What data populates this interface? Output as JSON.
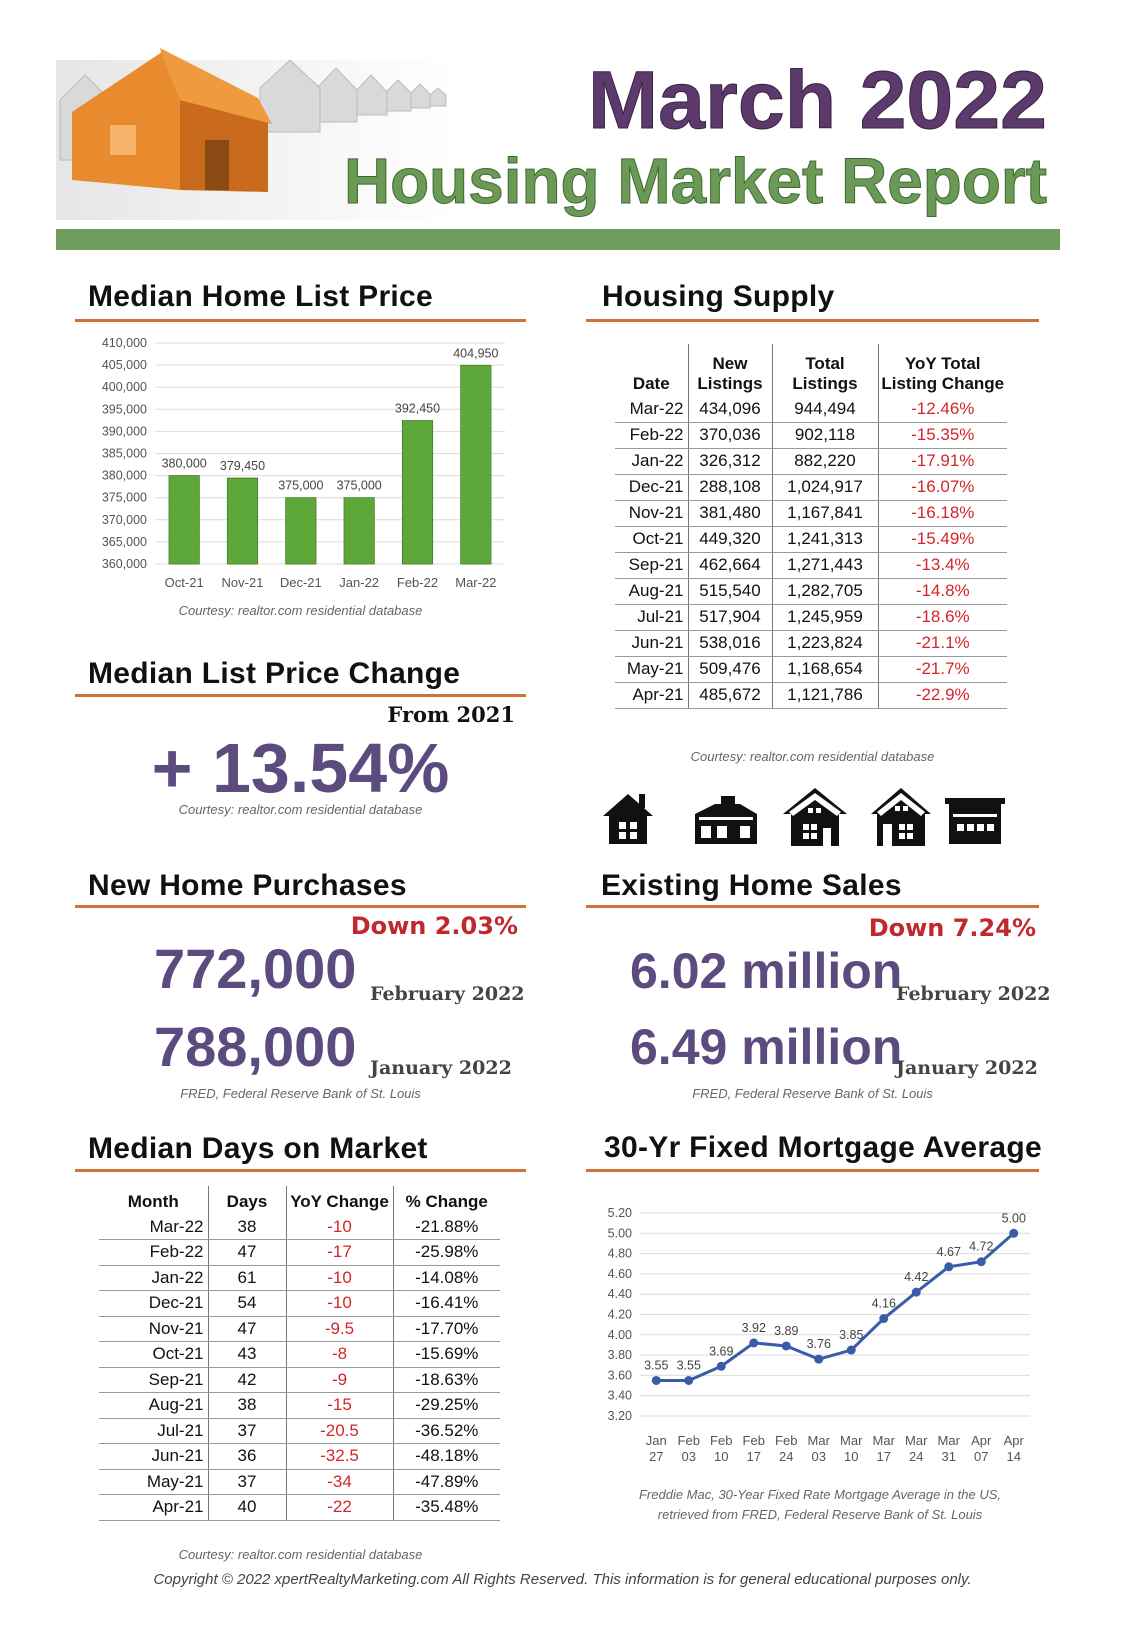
{
  "header": {
    "title": "March 2022",
    "subtitle": "Housing Market Report"
  },
  "chart_data": [
    {
      "type": "bar",
      "title": "Median Home List Price",
      "categories": [
        "Oct-21",
        "Nov-21",
        "Dec-21",
        "Jan-22",
        "Feb-22",
        "Mar-22"
      ],
      "values": [
        380000,
        379450,
        375000,
        375000,
        392450,
        404950
      ],
      "value_labels": [
        "380,000",
        "379,450",
        "375,000",
        "375,000",
        "392,450",
        "404,950"
      ],
      "color": "#5ea83a",
      "ylim": [
        360000,
        410000
      ],
      "yticks": [
        {
          "value": 360000,
          "label": "360,000"
        },
        {
          "value": 365000,
          "label": "365,000"
        },
        {
          "value": 370000,
          "label": "370,000"
        },
        {
          "value": 375000,
          "label": "375,000"
        },
        {
          "value": 380000,
          "label": "380,000"
        },
        {
          "value": 385000,
          "label": "385,000"
        },
        {
          "value": 390000,
          "label": "390,000"
        },
        {
          "value": 395000,
          "label": "395,000"
        },
        {
          "value": 400000,
          "label": "400,000"
        },
        {
          "value": 405000,
          "label": "405,000"
        },
        {
          "value": 410000,
          "label": "410,000"
        }
      ],
      "grid": true,
      "source": "Courtesy: realtor.com residential database"
    },
    {
      "type": "line",
      "title": "30-Yr Fixed Mortgage Average",
      "categories": [
        "Jan 27",
        "Feb 03",
        "Feb 10",
        "Feb 17",
        "Feb 24",
        "Mar 03",
        "Mar 10",
        "Mar 17",
        "Mar 24",
        "Mar 31",
        "Apr 07",
        "Apr 14"
      ],
      "values": [
        3.55,
        3.55,
        3.69,
        3.92,
        3.89,
        3.76,
        3.85,
        4.16,
        4.42,
        4.67,
        4.72,
        5.0
      ],
      "value_labels": [
        "3.55",
        "3.55",
        "3.69",
        "3.92",
        "3.89",
        "3.76",
        "3.85",
        "4.16",
        "4.42",
        "4.67",
        "4.72",
        "5.00"
      ],
      "color": "#3a5ca8",
      "ylim": [
        3.2,
        5.2
      ],
      "yticks": [
        {
          "value": 3.2,
          "label": "3.20"
        },
        {
          "value": 3.4,
          "label": "3.40"
        },
        {
          "value": 3.6,
          "label": "3.60"
        },
        {
          "value": 3.8,
          "label": "3.80"
        },
        {
          "value": 4.0,
          "label": "4.00"
        },
        {
          "value": 4.2,
          "label": "4.20"
        },
        {
          "value": 4.4,
          "label": "4.40"
        },
        {
          "value": 4.6,
          "label": "4.60"
        },
        {
          "value": 4.8,
          "label": "4.80"
        },
        {
          "value": 5.0,
          "label": "5.00"
        },
        {
          "value": 5.2,
          "label": "5.20"
        }
      ],
      "grid": true,
      "source": "Freddie Mac, 30-Year Fixed Rate Mortgage Average in the US, retrieved from FRED, Federal Reserve Bank of St. Louis"
    }
  ],
  "list_price_change": {
    "title": "Median List Price Change",
    "period": "From 2021",
    "value": "+ 13.54%",
    "source": "Courtesy: realtor.com residential database"
  },
  "new_home_purchases": {
    "title": "New Home Purchases",
    "change": "Down 2.03%",
    "figures": [
      {
        "value": "772,000",
        "period": "February 2022"
      },
      {
        "value": "788,000",
        "period": "January 2022"
      }
    ],
    "source": "FRED, Federal Reserve Bank of St. Louis"
  },
  "existing_home_sales": {
    "title": "Existing Home Sales",
    "change": "Down 7.24%",
    "figures": [
      {
        "value": "6.02 million",
        "period": "February 2022"
      },
      {
        "value": "6.49 million",
        "period": "January 2022"
      }
    ],
    "source": "FRED, Federal Reserve Bank of St. Louis"
  },
  "housing_supply": {
    "title": "Housing Supply",
    "columns": [
      "Date",
      "New Listings",
      "Total Listings",
      "YoY Total Listing Change"
    ],
    "rows": [
      [
        "Mar-22",
        "434,096",
        "944,494",
        "-12.46%"
      ],
      [
        "Feb-22",
        "370,036",
        "902,118",
        "-15.35%"
      ],
      [
        "Jan-22",
        "326,312",
        "882,220",
        "-17.91%"
      ],
      [
        "Dec-21",
        "288,108",
        "1,024,917",
        "-16.07%"
      ],
      [
        "Nov-21",
        "381,480",
        "1,167,841",
        "-16.18%"
      ],
      [
        "Oct-21",
        "449,320",
        "1,241,313",
        "-15.49%"
      ],
      [
        "Sep-21",
        "462,664",
        "1,271,443",
        "-13.4%"
      ],
      [
        "Aug-21",
        "515,540",
        "1,282,705",
        "-14.8%"
      ],
      [
        "Jul-21",
        "517,904",
        "1,245,959",
        "-18.6%"
      ],
      [
        "Jun-21",
        "538,016",
        "1,223,824",
        "-21.1%"
      ],
      [
        "May-21",
        "509,476",
        "1,168,654",
        "-21.7%"
      ],
      [
        "Apr-21",
        "485,672",
        "1,121,786",
        "-22.9%"
      ]
    ],
    "source": "Courtesy: realtor.com residential database"
  },
  "days_on_market": {
    "title": "Median Days on Market",
    "columns": [
      "Month",
      "Days",
      "YoY Change",
      "% Change"
    ],
    "rows": [
      [
        "Mar-22",
        "38",
        "-10",
        "-21.88%"
      ],
      [
        "Feb-22",
        "47",
        "-17",
        "-25.98%"
      ],
      [
        "Jan-22",
        "61",
        "-10",
        "-14.08%"
      ],
      [
        "Dec-21",
        "54",
        "-10",
        "-16.41%"
      ],
      [
        "Nov-21",
        "47",
        "-9.5",
        "-17.70%"
      ],
      [
        "Oct-21",
        "43",
        "-8",
        "-15.69%"
      ],
      [
        "Sep-21",
        "42",
        "-9",
        "-18.63%"
      ],
      [
        "Aug-21",
        "38",
        "-15",
        "-29.25%"
      ],
      [
        "Jul-21",
        "37",
        "-20.5",
        "-36.52%"
      ],
      [
        "Jun-21",
        "36",
        "-32.5",
        "-48.18%"
      ],
      [
        "May-21",
        "37",
        "-34",
        "-47.89%"
      ],
      [
        "Apr-21",
        "40",
        "-22",
        "-35.48%"
      ]
    ],
    "source": "Courtesy: realtor.com residential database"
  },
  "footer": "Copyright © 2022 xpertRealtyMarketing.com All Rights Reserved. This information is for general educational purposes only."
}
